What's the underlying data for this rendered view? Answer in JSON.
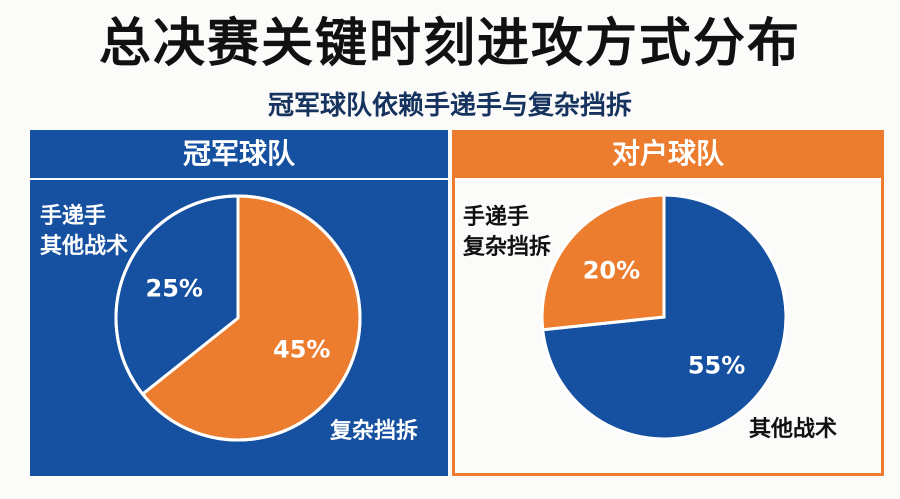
{
  "title": "总决赛关键时刻进攻方式分布",
  "subtitle": "冠军球队依赖手递手与复杂挡拆",
  "colors": {
    "blue": "#1650a0",
    "orange": "#ec7d2f"
  },
  "chart_data": [
    {
      "type": "pie",
      "title": "冠军球队",
      "slices": [
        {
          "label": "复杂挡拆",
          "value": 45,
          "value_label": "45%",
          "color": "#ec7d2f"
        },
        {
          "label": "手递手\n其他战术",
          "value": 25,
          "value_label": "25%",
          "color": "#1650a0"
        }
      ]
    },
    {
      "type": "pie",
      "title": "对户球队",
      "slices": [
        {
          "label": "其他战术",
          "value": 55,
          "value_label": "55%",
          "color": "#1650a0"
        },
        {
          "label": "手递手\n复杂挡拆",
          "value": 20,
          "value_label": "20%",
          "color": "#ec7d2f"
        }
      ]
    }
  ]
}
